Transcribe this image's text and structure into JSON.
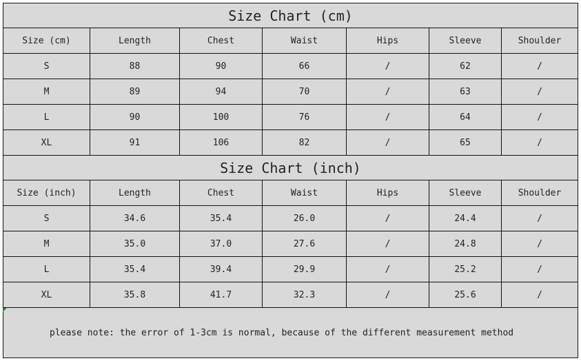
{
  "cm": {
    "title": "Size Chart (cm)",
    "headers": [
      "Size (cm)",
      "Length",
      "Chest",
      "Waist",
      "Hips",
      "Sleeve",
      "Shoulder"
    ],
    "rows": [
      [
        "S",
        "88",
        "90",
        "66",
        "/",
        "62",
        "/"
      ],
      [
        "M",
        "89",
        "94",
        "70",
        "/",
        "63",
        "/"
      ],
      [
        "L",
        "90",
        "100",
        "76",
        "/",
        "64",
        "/"
      ],
      [
        "XL",
        "91",
        "106",
        "82",
        "/",
        "65",
        "/"
      ]
    ]
  },
  "inch": {
    "title": "Size Chart (inch)",
    "headers": [
      "Size (inch)",
      "Length",
      "Chest",
      "Waist",
      "Hips",
      "Sleeve",
      "Shoulder"
    ],
    "rows": [
      [
        "S",
        "34.6",
        "35.4",
        "26.0",
        "/",
        "24.4",
        "/"
      ],
      [
        "M",
        "35.0",
        "37.0",
        "27.6",
        "/",
        "24.8",
        "/"
      ],
      [
        "L",
        "35.4",
        "39.4",
        "29.9",
        "/",
        "25.2",
        "/"
      ],
      [
        "XL",
        "35.8",
        "41.7",
        "32.3",
        "/",
        "25.6",
        "/"
      ]
    ]
  },
  "note": "please note: the error of 1-3cm is normal, because of the different measurement method"
}
